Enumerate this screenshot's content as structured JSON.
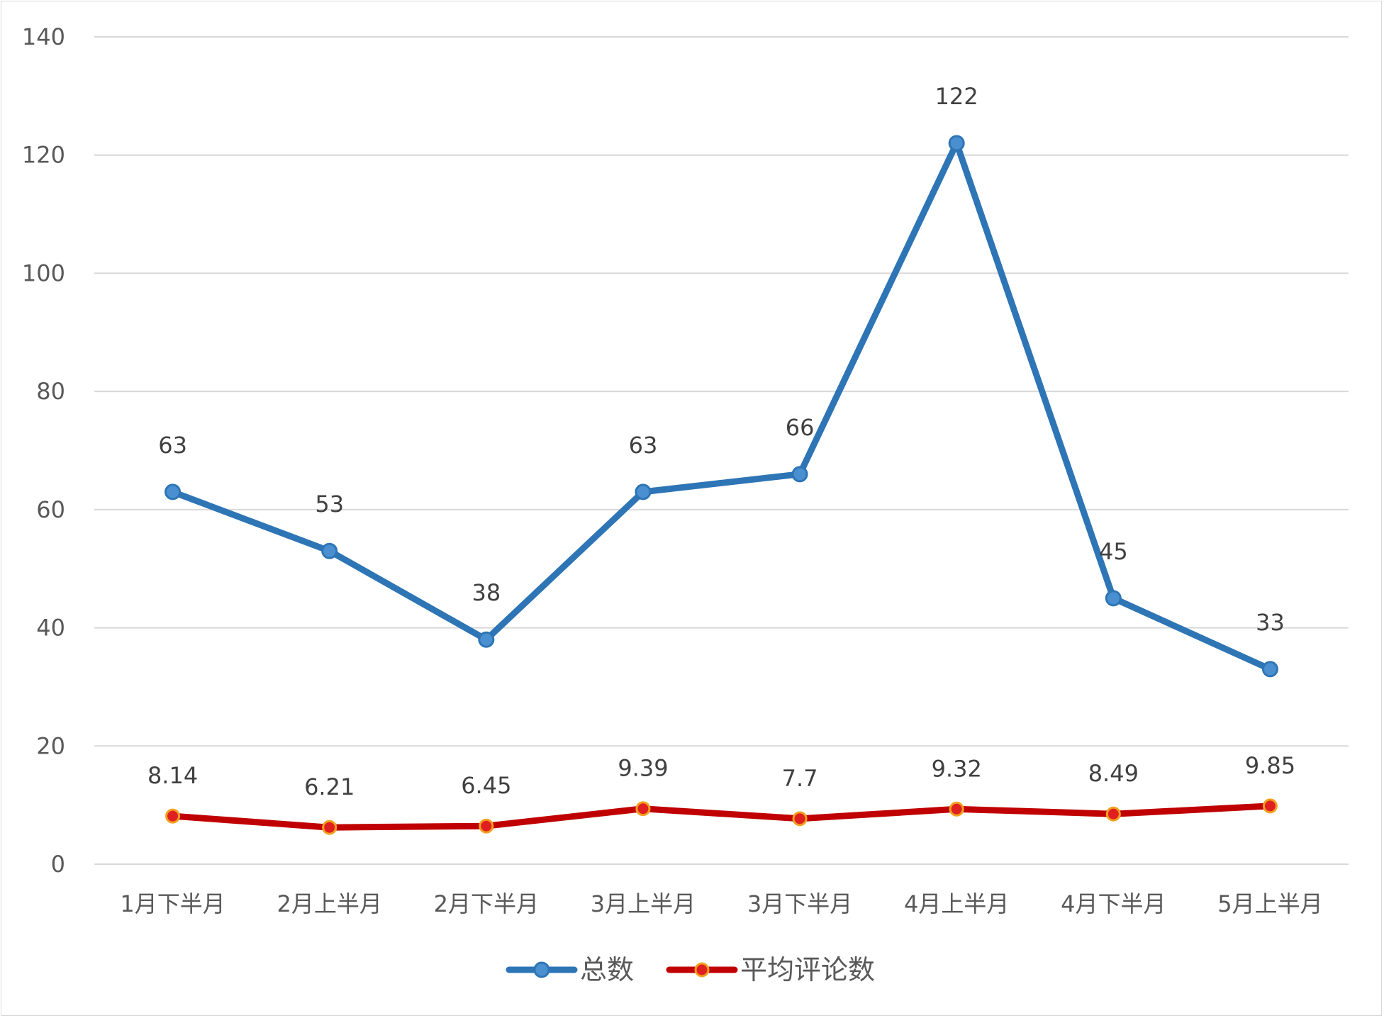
{
  "chart_data": {
    "type": "line",
    "title": "",
    "xlabel": "",
    "ylabel": "",
    "ylim": [
      0,
      140
    ],
    "yticks": [
      0,
      20,
      40,
      60,
      80,
      100,
      120,
      140
    ],
    "grid": true,
    "legend_position": "bottom",
    "categories": [
      "1月下半月",
      "2月上半月",
      "2月下半月",
      "3月上半月",
      "3月下半月",
      "4月上半月",
      "4月下半月",
      "5月上半月"
    ],
    "series": [
      {
        "name": "总数",
        "color": "#2e75b6",
        "values": [
          63,
          53,
          38,
          63,
          66,
          122,
          45,
          33
        ],
        "labels": [
          "63",
          "53",
          "38",
          "63",
          "66",
          "122",
          "45",
          "33"
        ]
      },
      {
        "name": "平均评论数",
        "color": "#c00000",
        "marker_fill": "#e02020",
        "marker_edge": "#f4a020",
        "values": [
          8.14,
          6.21,
          6.45,
          9.39,
          7.7,
          9.32,
          8.49,
          9.85
        ],
        "labels": [
          "8.14",
          "6.21",
          "6.45",
          "9.39",
          "7.7",
          "9.32",
          "8.49",
          "9.85"
        ]
      }
    ]
  }
}
